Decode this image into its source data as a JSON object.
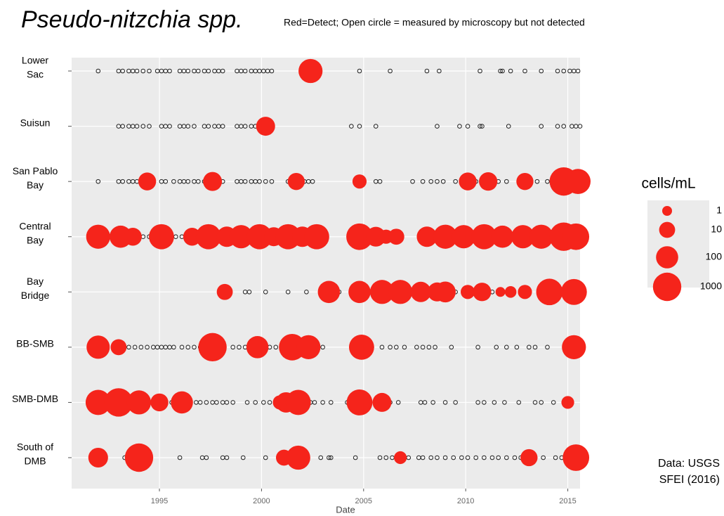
{
  "chart_data": {
    "type": "bubble",
    "title": "Pseudo-nitzchia spp.",
    "subtitle": "Red=Detect; Open circle = measured by microscopy but not detected",
    "x_label": "Date",
    "xlim": [
      1990.7,
      2015.6
    ],
    "xticks": [
      1995,
      2000,
      2005,
      2010,
      2015
    ],
    "grid": true,
    "detect_color": "#f5241b",
    "open_color": "#222222",
    "size_legend": {
      "title": "cells/mL",
      "values": [
        1,
        10,
        100,
        1000
      ]
    },
    "annotation": [
      "Data: USGS",
      "SFEI (2016)"
    ],
    "stations": [
      {
        "name": [
          "Lower",
          "Sac"
        ],
        "detected": {
          "x": [
            2002.4
          ],
          "size": [
            200
          ]
        },
        "not_detected": [
          1992.0,
          1993.0,
          1993.2,
          1993.5,
          1993.7,
          1993.9,
          1994.2,
          1994.5,
          1994.9,
          1995.1,
          1995.3,
          1995.5,
          1996.0,
          1996.2,
          1996.4,
          1996.7,
          1996.9,
          1997.2,
          1997.4,
          1997.7,
          1997.9,
          1998.1,
          1998.8,
          1999.0,
          1999.2,
          1999.5,
          1999.7,
          1999.9,
          2000.1,
          2000.3,
          2000.5,
          2002.1,
          2004.8,
          2006.3,
          2008.1,
          2008.7,
          2010.7,
          2011.7,
          2011.8,
          2012.2,
          2012.9,
          2013.7,
          2014.5,
          2014.8,
          2015.1,
          2015.3,
          2015.5
        ]
      },
      {
        "name": [
          "Suisun"
        ],
        "detected": {
          "x": [
            2000.2
          ],
          "size": [
            30
          ]
        },
        "not_detected": [
          1993.0,
          1993.2,
          1993.5,
          1993.7,
          1993.9,
          1994.2,
          1994.5,
          1995.1,
          1995.3,
          1995.5,
          1996.0,
          1996.2,
          1996.4,
          1996.7,
          1997.2,
          1997.4,
          1997.7,
          1997.9,
          1998.1,
          1998.8,
          1999.0,
          1999.2,
          1999.5,
          1999.7,
          2000.5,
          2004.4,
          2004.8,
          2005.6,
          2008.6,
          2009.7,
          2010.1,
          2010.7,
          2010.8,
          2012.1,
          2013.7,
          2014.5,
          2014.8,
          2015.2,
          2015.4,
          2015.6
        ]
      },
      {
        "name": [
          "San Pablo",
          "Bay"
        ],
        "detected": {
          "x": [
            1994.4,
            1997.6,
            2001.7,
            2004.8,
            2010.1,
            2011.1,
            2012.9,
            2014.8,
            2015.5
          ],
          "size": [
            20,
            30,
            15,
            5,
            20,
            25,
            15,
            1000,
            300
          ]
        },
        "not_detected": [
          1992.0,
          1993.0,
          1993.2,
          1993.5,
          1993.7,
          1993.9,
          1994.2,
          1995.1,
          1995.3,
          1995.7,
          1996.0,
          1996.2,
          1996.4,
          1996.7,
          1996.9,
          1997.2,
          1997.9,
          1998.1,
          1998.8,
          1999.0,
          1999.2,
          1999.5,
          1999.7,
          1999.9,
          2000.2,
          2000.5,
          2001.3,
          2002.1,
          2002.3,
          2002.5,
          2004.9,
          2005.6,
          2005.8,
          2007.4,
          2007.9,
          2008.3,
          2008.6,
          2008.9,
          2009.5,
          2010.5,
          2011.6,
          2012.0,
          2013.5,
          2014.0
        ]
      },
      {
        "name": [
          "Central",
          "Bay"
        ],
        "detected": {
          "x": [
            1992.0,
            1993.1,
            1993.7,
            1995.1,
            1996.6,
            1997.4,
            1998.3,
            1999.0,
            1999.9,
            2000.6,
            2001.3,
            2002.0,
            2002.7,
            2004.8,
            2005.6,
            2006.1,
            2006.6,
            2008.1,
            2009.0,
            2009.9,
            2010.9,
            2011.8,
            2012.8,
            2013.7,
            2014.8,
            2015.4
          ],
          "size": [
            200,
            100,
            20,
            300,
            20,
            300,
            50,
            150,
            300,
            30,
            300,
            50,
            300,
            500,
            40,
            5,
            10,
            50,
            200,
            150,
            300,
            100,
            150,
            200,
            1000,
            500
          ]
        },
        "not_detected": [
          1994.2,
          1994.5,
          1995.6,
          1995.8,
          1996.1,
          1996.3,
          1998.6,
          1999.3
        ]
      },
      {
        "name": [
          "Bay",
          "Bridge"
        ],
        "detected": {
          "x": [
            1998.2,
            2003.3,
            2004.8,
            2005.9,
            2006.8,
            2007.8,
            2008.6,
            2009.0,
            2010.1,
            2010.8,
            2011.7,
            2012.2,
            2012.9,
            2014.1,
            2015.3
          ],
          "size": [
            10,
            100,
            100,
            200,
            200,
            50,
            30,
            60,
            5,
            25,
            1,
            2,
            5,
            500,
            400
          ]
        },
        "not_detected": [
          1999.2,
          1999.4,
          2000.2,
          2001.3,
          2002.2,
          2003.8,
          2005.3,
          2007.1,
          2007.4,
          2008.9,
          2009.3,
          2009.5,
          2011.3
        ]
      },
      {
        "name": [
          "BB-SMB"
        ],
        "detected": {
          "x": [
            1992.0,
            1993.0,
            1997.6,
            1999.8,
            2001.5,
            2002.3,
            2004.9,
            2015.3
          ],
          "size": [
            150,
            10,
            1000,
            100,
            500,
            200,
            300,
            200
          ]
        },
        "not_detected": [
          1993.5,
          1993.8,
          1994.1,
          1994.4,
          1994.7,
          1994.9,
          1995.1,
          1995.3,
          1995.5,
          1995.7,
          1996.1,
          1996.4,
          1996.7,
          1997.0,
          1998.6,
          1998.9,
          1999.2,
          2000.4,
          2000.7,
          2002.7,
          2003.0,
          2005.4,
          2005.9,
          2006.3,
          2006.6,
          2007.0,
          2007.6,
          2007.9,
          2008.2,
          2008.5,
          2009.3,
          2010.6,
          2011.5,
          2012.0,
          2012.5,
          2013.1,
          2013.4,
          2014.0
        ]
      },
      {
        "name": [
          "SMB-DMB"
        ],
        "detected": {
          "x": [
            1992.0,
            1993.0,
            1994.0,
            1995.0,
            1996.1,
            2000.9,
            2001.2,
            2001.8,
            2004.8,
            2005.9,
            2015.0
          ],
          "size": [
            300,
            1000,
            200,
            20,
            100,
            5,
            50,
            300,
            400,
            30,
            3
          ]
        },
        "not_detected": [
          1995.6,
          1996.4,
          1996.8,
          1997.0,
          1997.3,
          1997.6,
          1997.8,
          1998.1,
          1998.3,
          1998.6,
          1999.3,
          1999.7,
          2000.1,
          2000.4,
          2002.4,
          2002.6,
          2003.0,
          2003.4,
          2004.2,
          2006.3,
          2006.7,
          2007.8,
          2008.0,
          2008.4,
          2009.0,
          2009.5,
          2010.6,
          2010.9,
          2011.4,
          2011.9,
          2012.6,
          2013.4,
          2013.7,
          2014.3,
          2014.8
        ]
      },
      {
        "name": [
          "South of",
          "DMB"
        ],
        "detected": {
          "x": [
            1992.0,
            1994.0,
            2001.1,
            2001.8,
            2006.8,
            2013.1,
            2015.4
          ],
          "size": [
            40,
            1000,
            10,
            200,
            3,
            15,
            500
          ]
        },
        "not_detected": [
          1993.3,
          1993.6,
          1996.0,
          1997.1,
          1997.3,
          1998.1,
          1998.3,
          1999.1,
          2000.2,
          2002.9,
          2003.3,
          2003.4,
          2004.6,
          2005.8,
          2006.1,
          2006.4,
          2007.2,
          2007.7,
          2007.9,
          2008.3,
          2008.6,
          2009.0,
          2009.4,
          2009.8,
          2010.1,
          2010.5,
          2010.9,
          2011.3,
          2011.6,
          2012.0,
          2012.4,
          2012.7,
          2013.4,
          2013.8,
          2014.4,
          2014.7
        ]
      }
    ]
  }
}
